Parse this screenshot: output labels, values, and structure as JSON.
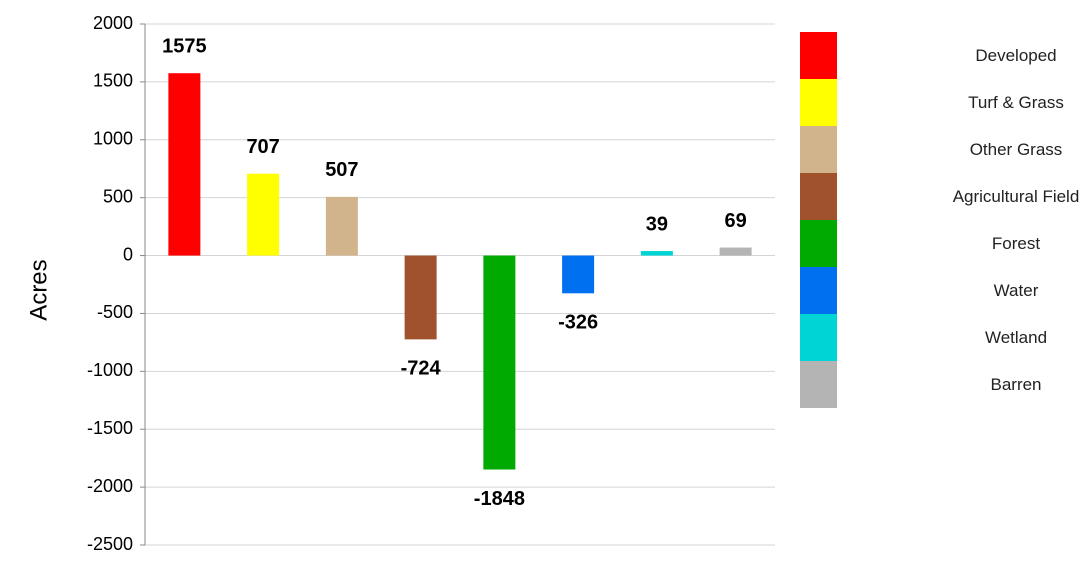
{
  "chart_data": {
    "type": "bar",
    "y_label": "Acres",
    "categories": [
      "Developed",
      "Turf & Grass",
      "Other Grass",
      "Agricultural Field",
      "Forest",
      "Water",
      "Wetland",
      "Barren"
    ],
    "values": [
      1575,
      707,
      507,
      -724,
      -1848,
      -326,
      39,
      69
    ],
    "colors": [
      "#ff0000",
      "#ffff00",
      "#d2b48c",
      "#a0522d",
      "#00aa00",
      "#0070f0",
      "#00d4d4",
      "#b4b4b4"
    ],
    "ylim": [
      -2500,
      2000
    ],
    "yticks": [
      -2500,
      -2000,
      -1500,
      -1000,
      -500,
      0,
      500,
      1000,
      1500,
      2000
    ],
    "grid": true
  }
}
